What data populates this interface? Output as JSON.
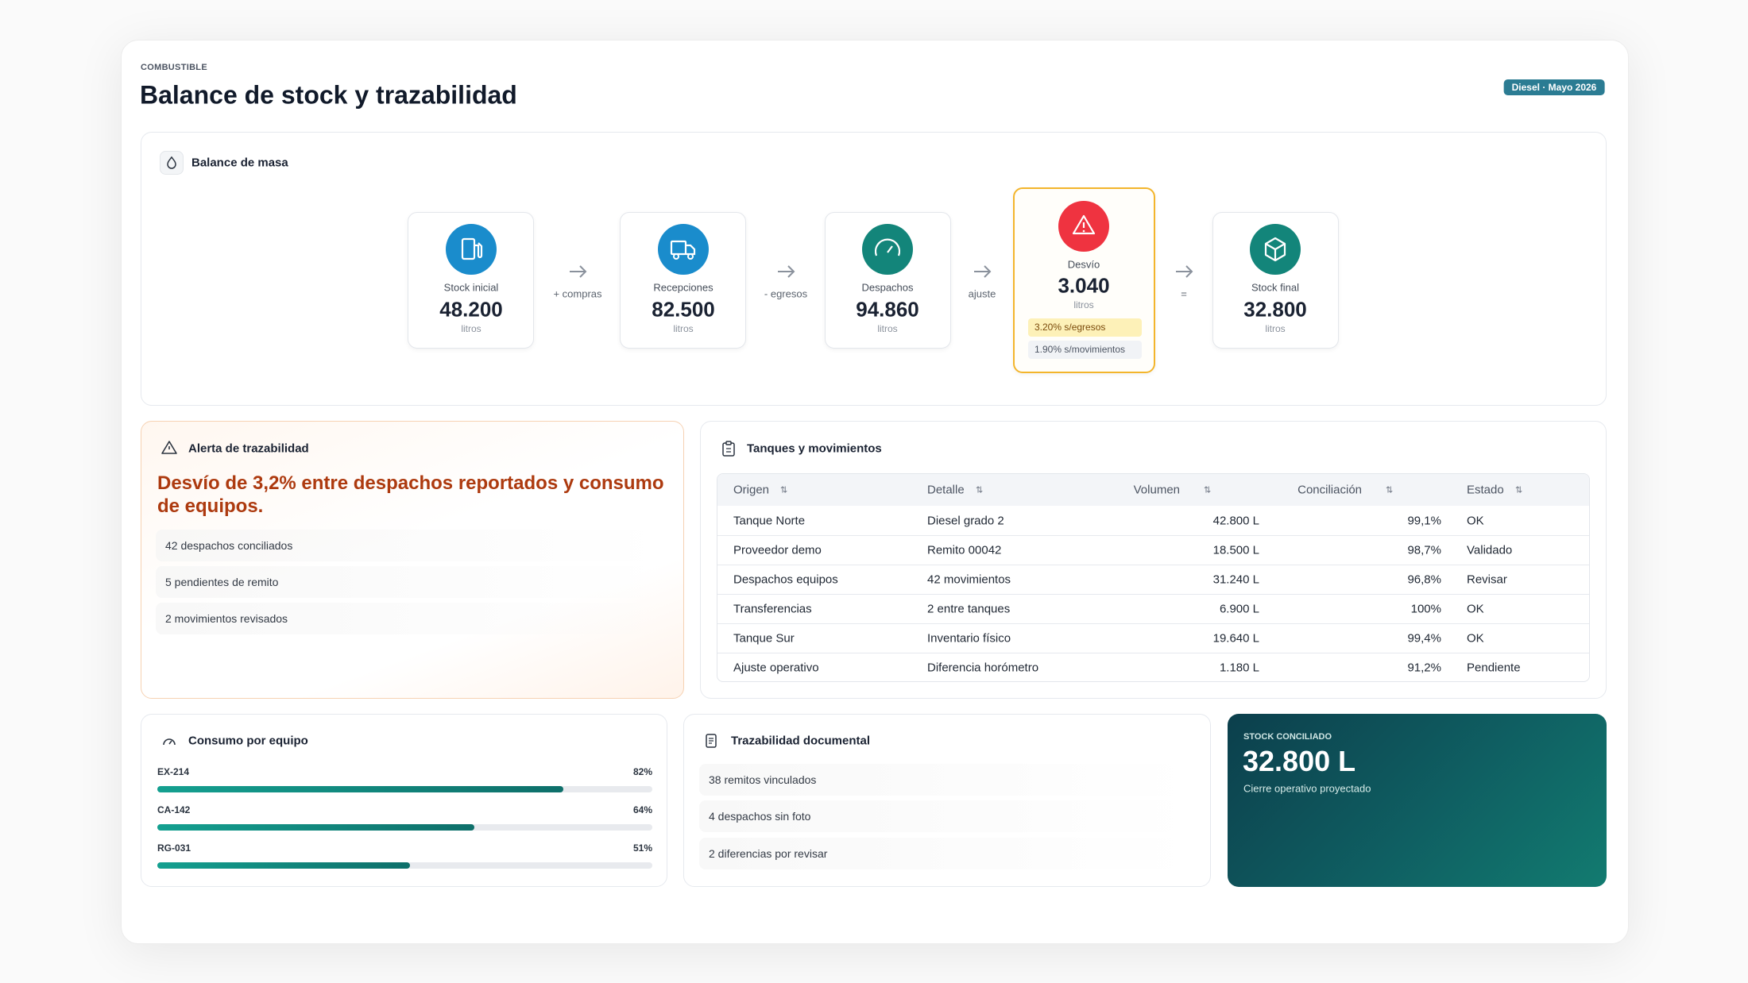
{
  "header": {
    "section": "COMBUSTIBLE",
    "title": "Balance de stock y trazabilidad",
    "badge": "Diesel · Mayo 2026"
  },
  "balance": {
    "title": "Balance de masa",
    "steps": [
      {
        "label": "Stock inicial",
        "value": "48.200",
        "unit": "litros"
      },
      {
        "label": "Recepciones",
        "value": "82.500",
        "unit": "litros"
      },
      {
        "label": "Despachos",
        "value": "94.860",
        "unit": "litros"
      },
      {
        "label": "Desvío",
        "value": "3.040",
        "unit": "litros",
        "tags": [
          "3.20% s/egresos",
          "1.90% s/movimientos"
        ]
      },
      {
        "label": "Stock final",
        "value": "32.800",
        "unit": "litros"
      }
    ],
    "operators": [
      "+ compras",
      "- egresos",
      "ajuste",
      "="
    ]
  },
  "alert": {
    "title": "Alerta de trazabilidad",
    "message": "Desvío de 3,2% entre despachos reportados y consumo de equipos.",
    "items": [
      "42 despachos conciliados",
      "5 pendientes de remito",
      "2 movimientos revisados"
    ]
  },
  "tanks": {
    "title": "Tanques y movimientos",
    "columns": [
      "Origen",
      "Detalle",
      "Volumen",
      "Conciliación",
      "Estado"
    ],
    "rows": [
      [
        "Tanque Norte",
        "Diesel grado 2",
        "42.800 L",
        "99,1%",
        "OK"
      ],
      [
        "Proveedor demo",
        "Remito 00042",
        "18.500 L",
        "98,7%",
        "Validado"
      ],
      [
        "Despachos equipos",
        "42 movimientos",
        "31.240 L",
        "96,8%",
        "Revisar"
      ],
      [
        "Transferencias",
        "2 entre tanques",
        "6.900 L",
        "100%",
        "OK"
      ],
      [
        "Tanque Sur",
        "Inventario físico",
        "19.640 L",
        "99,4%",
        "OK"
      ],
      [
        "Ajuste operativo",
        "Diferencia horómetro",
        "1.180 L",
        "91,2%",
        "Pendiente"
      ]
    ]
  },
  "consumption": {
    "title": "Consumo por equipo",
    "equipment": [
      {
        "name": "EX-214",
        "value": 82,
        "label": "82%"
      },
      {
        "name": "CA-142",
        "value": 64,
        "label": "64%"
      },
      {
        "name": "RG-031",
        "value": 51,
        "label": "51%"
      }
    ]
  },
  "documents": {
    "title": "Trazabilidad documental",
    "items": [
      "38 remitos vinculados",
      "4 despachos sin foto",
      "2 diferencias por revisar"
    ]
  },
  "reconciled": {
    "label": "STOCK CONCILIADO",
    "value": "32.800 L",
    "caption": "Cierre operativo proyectado"
  }
}
